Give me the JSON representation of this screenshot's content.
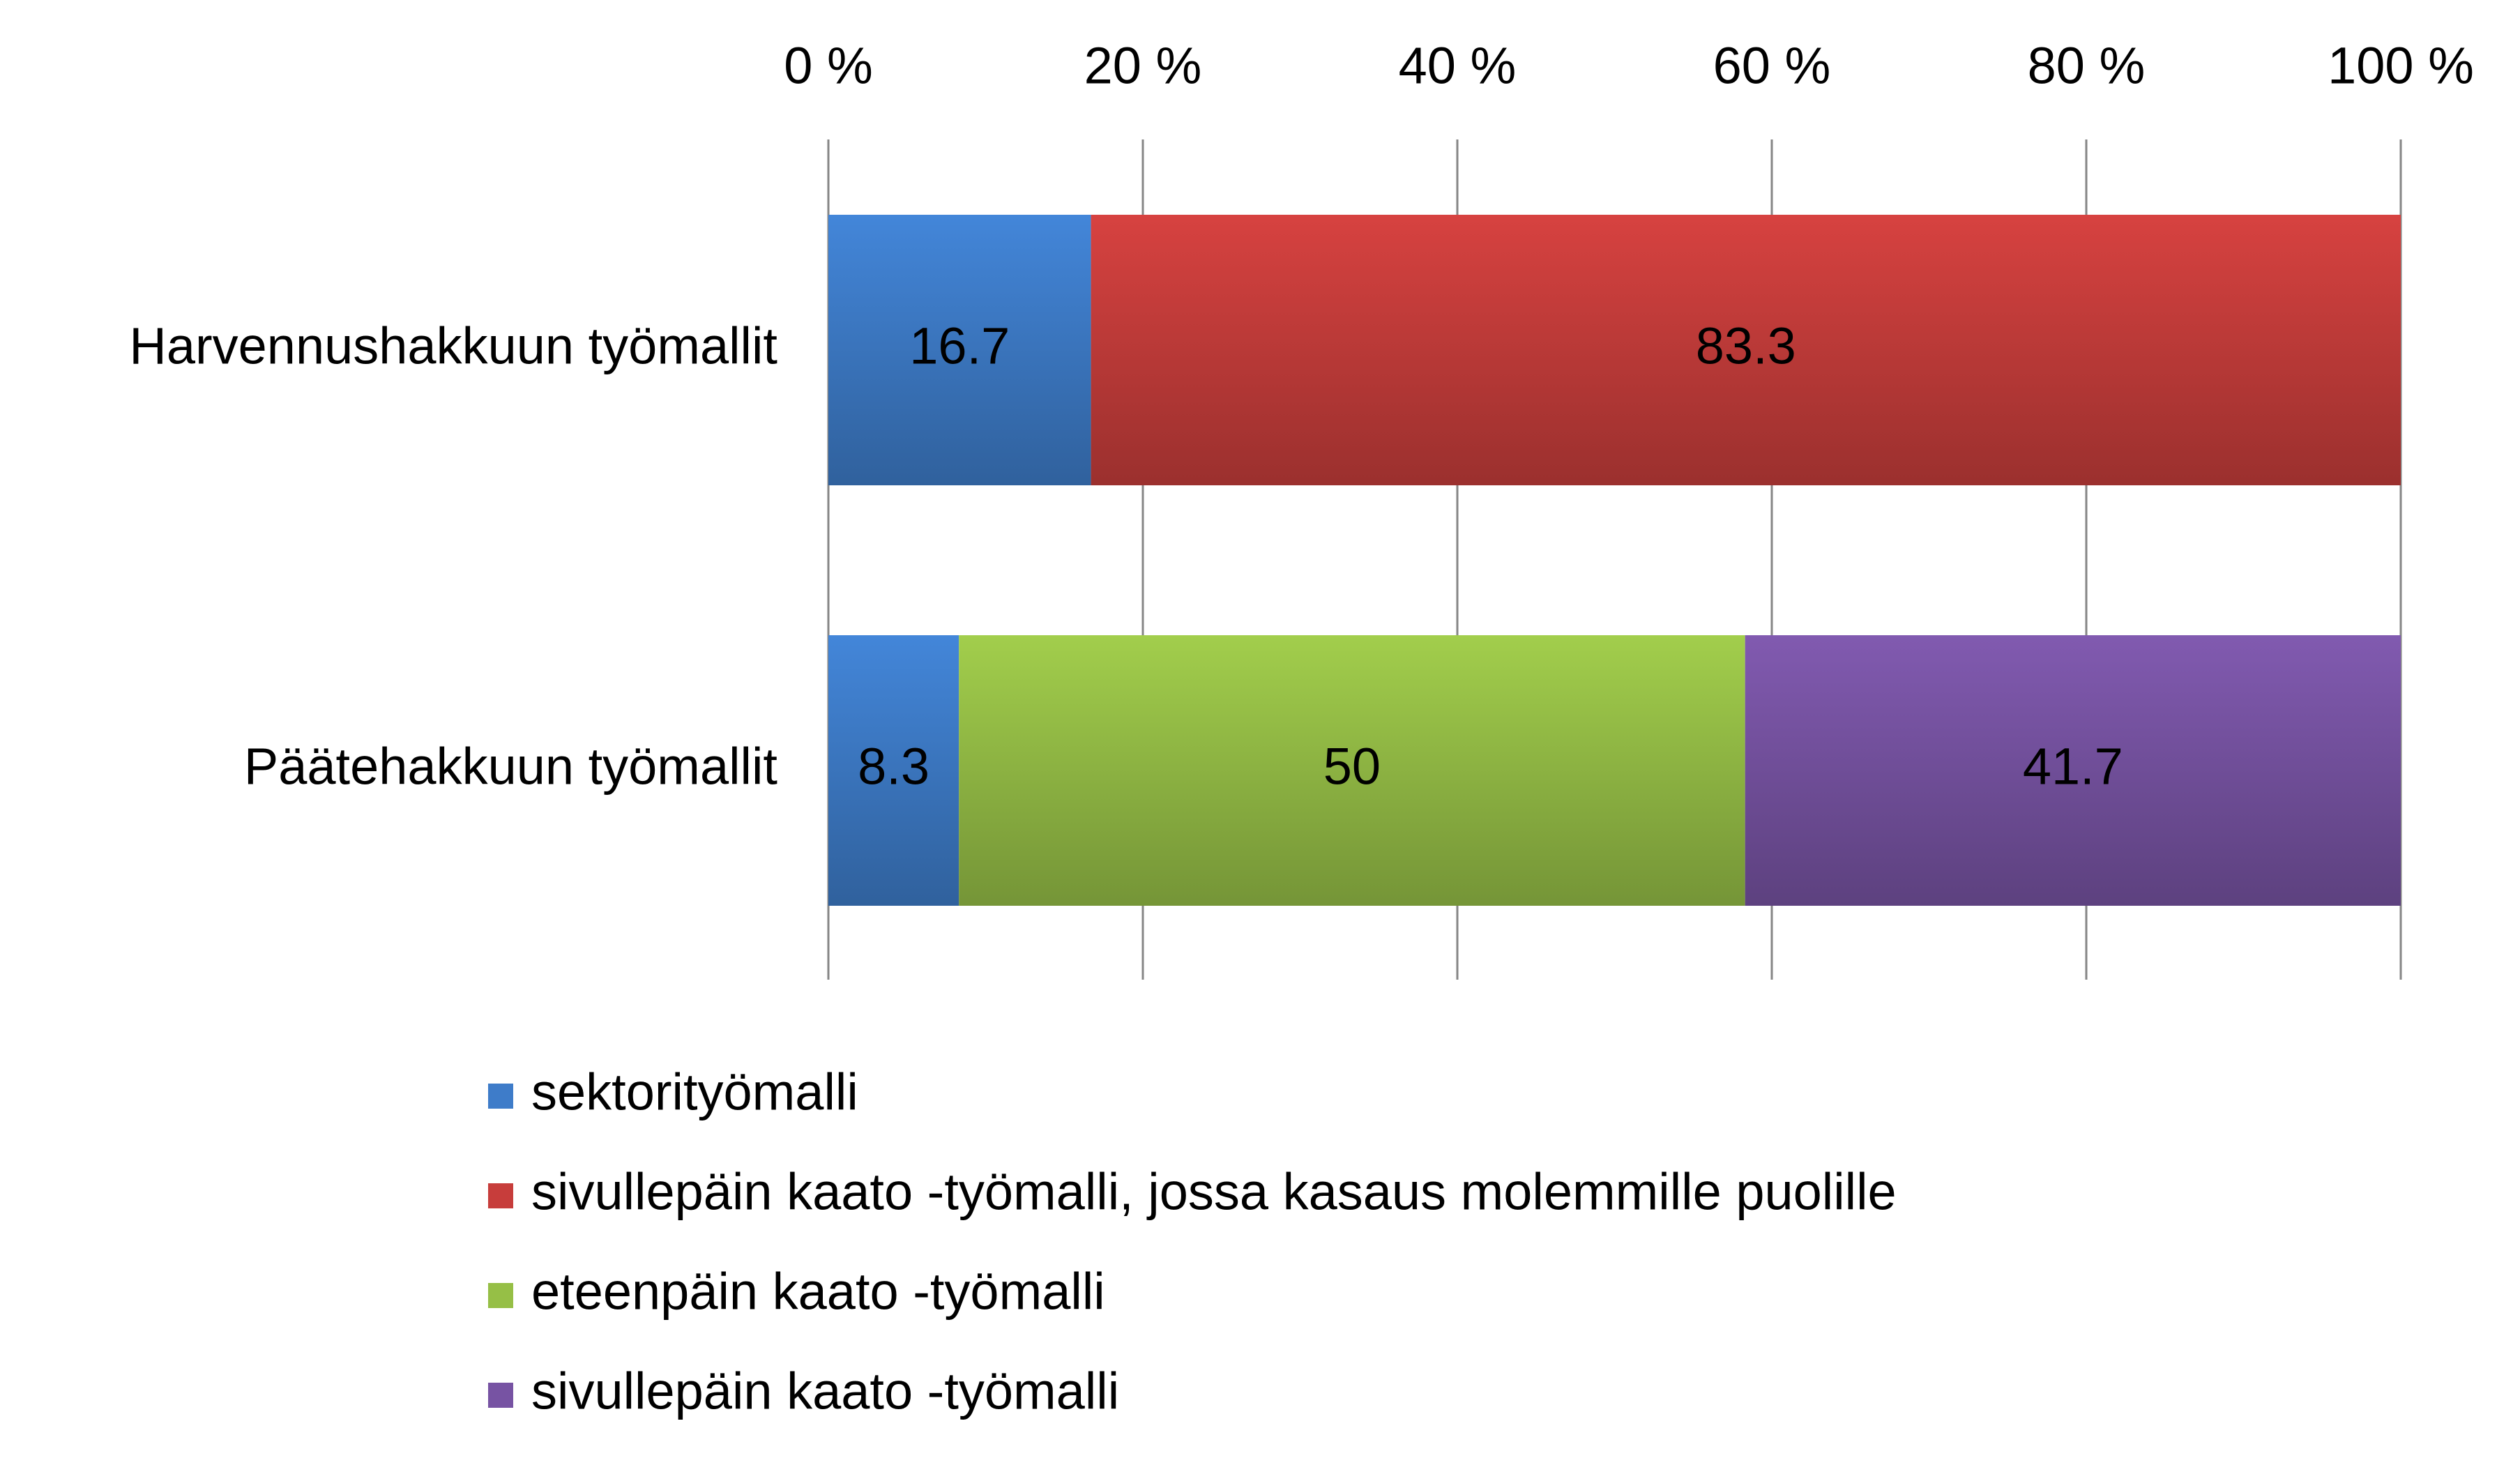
{
  "chart_data": {
    "type": "bar",
    "orientation": "horizontal",
    "stacked": "percent",
    "categories": [
      "Harvennushakkuun työmallit",
      "Päätehakkuun työmallit"
    ],
    "series": [
      {
        "name": "sektorityömalli",
        "color": "#3e7cc9",
        "values": [
          16.7,
          8.3
        ]
      },
      {
        "name": "sivullepäin kaato -työmalli, jossa kasaus molemmille puolille",
        "color": "#c73d3b",
        "values": [
          83.3,
          null
        ]
      },
      {
        "name": "eteenpäin kaato -työmalli",
        "color": "#96bf46",
        "values": [
          null,
          50
        ]
      },
      {
        "name": "sivullepäin kaato -työmalli",
        "color": "#7753a3",
        "values": [
          null,
          41.7
        ]
      }
    ],
    "x_ticks": [
      "0 %",
      "20 %",
      "40 %",
      "60 %",
      "80 %",
      "100 %"
    ],
    "xlim": [
      0,
      100
    ],
    "x_axis_position": "top",
    "grid": true,
    "legend_position": "bottom",
    "data_labels": true,
    "title": "",
    "xlabel": "",
    "ylabel": ""
  }
}
